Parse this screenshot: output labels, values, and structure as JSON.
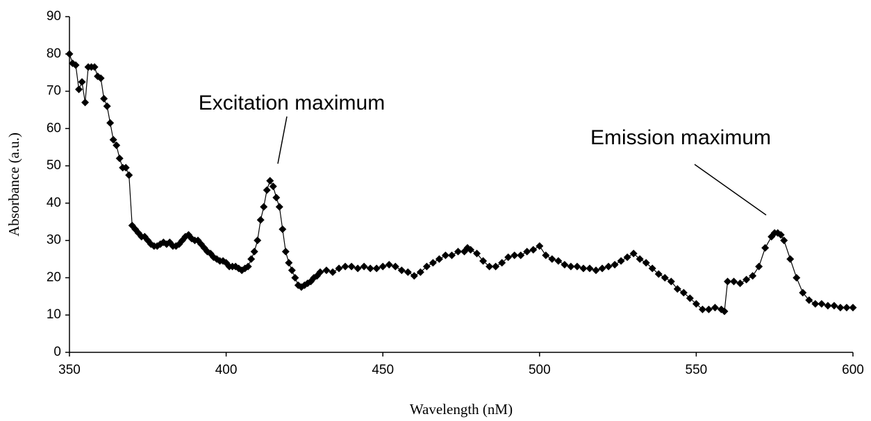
{
  "chart_data": {
    "type": "line",
    "x_label": "Wavelength (nM)",
    "y_label": "Absorbance (a.u.)",
    "annotations": [
      "Excitation maximum",
      "Emission maximum"
    ],
    "color": "#000000",
    "marker": "diamond",
    "xlim": [
      350,
      600
    ],
    "xticks": [
      350,
      400,
      450,
      500,
      550,
      600
    ],
    "ylim": [
      0,
      90
    ],
    "yticks": [
      0,
      10,
      20,
      30,
      40,
      50,
      60,
      70,
      80,
      90
    ],
    "x": [
      350,
      351,
      352,
      353,
      354,
      355,
      356,
      357,
      358,
      359,
      360,
      361,
      362,
      363,
      364,
      365,
      366,
      367,
      368,
      369,
      370,
      371,
      372,
      373,
      374,
      375,
      376,
      377,
      378,
      379,
      380,
      381,
      382,
      383,
      384,
      385,
      386,
      387,
      388,
      389,
      390,
      391,
      392,
      393,
      394,
      395,
      396,
      397,
      398,
      399,
      400,
      401,
      402,
      403,
      404,
      405,
      406,
      407,
      408,
      409,
      410,
      411,
      412,
      413,
      414,
      415,
      416,
      417,
      418,
      419,
      420,
      421,
      422,
      423,
      424,
      425,
      426,
      427,
      428,
      429,
      430,
      432,
      434,
      436,
      438,
      440,
      442,
      444,
      446,
      448,
      450,
      452,
      454,
      456,
      458,
      460,
      462,
      464,
      466,
      468,
      470,
      472,
      474,
      476,
      477,
      478,
      480,
      482,
      484,
      486,
      488,
      490,
      492,
      494,
      496,
      498,
      500,
      502,
      504,
      506,
      508,
      510,
      512,
      514,
      516,
      518,
      520,
      522,
      524,
      526,
      528,
      530,
      532,
      534,
      536,
      538,
      540,
      542,
      544,
      546,
      548,
      550,
      552,
      554,
      556,
      558,
      559,
      560,
      562,
      564,
      566,
      568,
      570,
      572,
      574,
      575,
      576,
      577,
      578,
      580,
      582,
      584,
      586,
      588,
      590,
      592,
      594,
      596,
      598,
      600
    ],
    "values": [
      80,
      77.5,
      77,
      70.5,
      72.5,
      67,
      76.5,
      76.5,
      76.5,
      74,
      73.5,
      68,
      66,
      61.5,
      57,
      55.5,
      52,
      49.5,
      49.5,
      47.5,
      34,
      33,
      32,
      31,
      31,
      30,
      29,
      28.5,
      28.5,
      29,
      29.5,
      29,
      29.5,
      28.5,
      28.5,
      29,
      30,
      31,
      31.5,
      30.5,
      30,
      30,
      29,
      28,
      27,
      26.5,
      25.5,
      25,
      24.5,
      24.5,
      24,
      23,
      23,
      23,
      22.5,
      22,
      22.5,
      23,
      25,
      27,
      30,
      35.5,
      39,
      43.5,
      46,
      44.5,
      41.5,
      39,
      33,
      27,
      24,
      22,
      20,
      18,
      17.5,
      18,
      18.5,
      19,
      20,
      20.5,
      21.5,
      22,
      21.5,
      22.5,
      23,
      23,
      22.5,
      23,
      22.5,
      22.5,
      23,
      23.5,
      23,
      22,
      21.5,
      20.5,
      21.5,
      23,
      24,
      25,
      26,
      26,
      27,
      27,
      28,
      27.5,
      26.5,
      24.5,
      23,
      23,
      24,
      25.5,
      26,
      26,
      27,
      27.5,
      28.5,
      26,
      25,
      24.5,
      23.5,
      23,
      23,
      22.5,
      22.5,
      22,
      22.5,
      23,
      23.5,
      24.5,
      25.5,
      26.5,
      25,
      24,
      22.5,
      21,
      20,
      19,
      17,
      16,
      14.5,
      13,
      11.5,
      11.5,
      12,
      11.5,
      11,
      19,
      19,
      18.5,
      19.5,
      20.5,
      23,
      28,
      31,
      32,
      32,
      31.5,
      30,
      25,
      20,
      16,
      14,
      13,
      13,
      12.5,
      12.5,
      12,
      12,
      12
    ]
  }
}
